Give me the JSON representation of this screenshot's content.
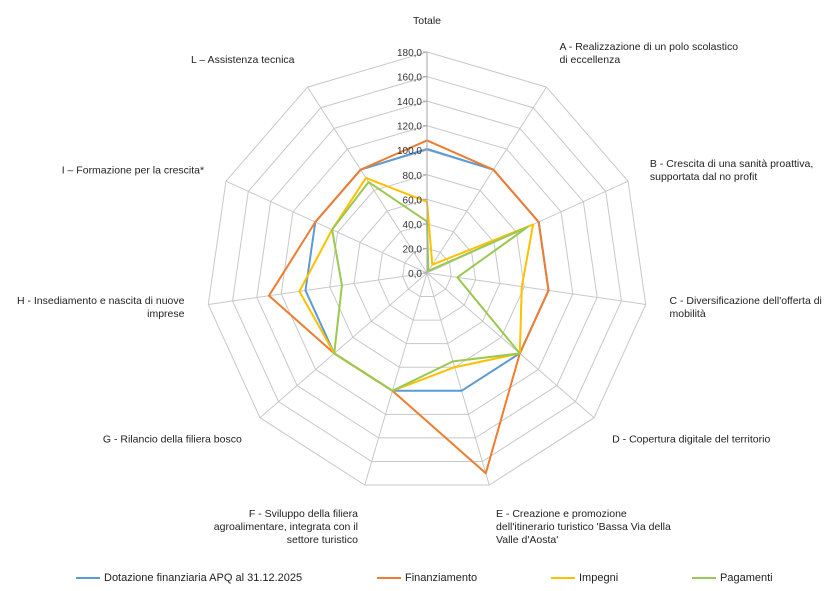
{
  "chart_data": {
    "type": "radar",
    "categories": [
      "Totale",
      "A - Realizzazione di un polo scolastico di eccellenza",
      "B - Crescita di una sanità proattiva, supportata dal no profit",
      "C - Diversificazione dell'offerta di mobilità",
      "D - Copertura digitale del territorio",
      "E - Creazione e promozione dell'itinerario turistico 'Bassa Via della Valle d'Aosta'",
      "F - Sviluppo della filiera agroalimentare, integrata con il settore turistico",
      "G - Rilancio della filiera bosco",
      "H - Insediamento e nascita di nuove imprese",
      "I – Formazione per la crescita*",
      "L – Assistenza tecnica"
    ],
    "category_label_lines": [
      [
        "Totale"
      ],
      [
        "A - Realizzazione di un polo scolastico",
        "di eccellenza"
      ],
      [
        "B - Crescita di una sanità proattiva,",
        "supportata dal no profit"
      ],
      [
        "C - Diversificazione dell'offerta di",
        "mobilità"
      ],
      [
        "D - Copertura digitale del territorio"
      ],
      [
        "E - Creazione e promozione",
        "dell'itinerario turistico 'Bassa Via della",
        "Valle d'Aosta'"
      ],
      [
        "F - Sviluppo della filiera",
        "agroalimentare, integrata con il",
        "settore turistico"
      ],
      [
        "G - Rilancio della filiera bosco"
      ],
      [
        "H - Insediamento e nascita di nuove",
        "imprese"
      ],
      [
        "I – Formazione per la crescita*"
      ],
      [
        "L – Assistenza tecnica"
      ]
    ],
    "ticks": [
      "0,0",
      "20,0",
      "40,0",
      "60,0",
      "80,0",
      "100,0",
      "120,0",
      "140,0",
      "160,0",
      "180,0"
    ],
    "rmin": 0,
    "rmax": 180,
    "series": [
      {
        "name": "Dotazione finanziaria APQ al 31.12.2025",
        "color": "#5b9bd5",
        "values": [
          101,
          100,
          100,
          100,
          100,
          100,
          100,
          100,
          100,
          100,
          100
        ]
      },
      {
        "name": "Finanziamento",
        "color": "#ed7d31",
        "values": [
          108,
          100,
          100,
          100,
          100,
          170,
          100,
          100,
          130,
          100,
          100
        ]
      },
      {
        "name": "Impegni",
        "color": "#ffc000",
        "values": [
          58,
          8,
          95,
          78,
          100,
          80,
          100,
          100,
          105,
          85,
          92
        ]
      },
      {
        "name": "Pagamenti",
        "color": "#9bc851",
        "values": [
          42,
          2,
          90,
          25,
          100,
          75,
          100,
          100,
          70,
          85,
          88
        ]
      }
    ],
    "grid": true,
    "legend_position": "bottom"
  }
}
